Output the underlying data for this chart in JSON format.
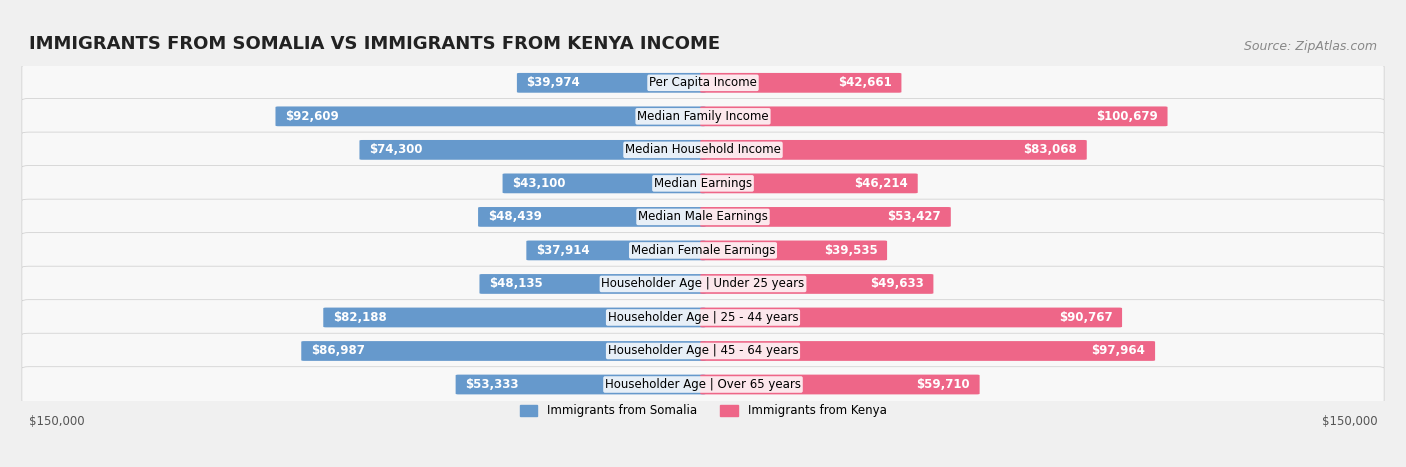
{
  "title": "IMMIGRANTS FROM SOMALIA VS IMMIGRANTS FROM KENYA INCOME",
  "source": "Source: ZipAtlas.com",
  "categories": [
    "Per Capita Income",
    "Median Family Income",
    "Median Household Income",
    "Median Earnings",
    "Median Male Earnings",
    "Median Female Earnings",
    "Householder Age | Under 25 years",
    "Householder Age | 25 - 44 years",
    "Householder Age | 45 - 64 years",
    "Householder Age | Over 65 years"
  ],
  "somalia_values": [
    39974,
    92609,
    74300,
    43100,
    48439,
    37914,
    48135,
    82188,
    86987,
    53333
  ],
  "kenya_values": [
    42661,
    100679,
    83068,
    46214,
    53427,
    39535,
    49633,
    90767,
    97964,
    59710
  ],
  "somalia_labels": [
    "$39,974",
    "$92,609",
    "$74,300",
    "$43,100",
    "$48,439",
    "$37,914",
    "$48,135",
    "$82,188",
    "$86,987",
    "$53,333"
  ],
  "kenya_labels": [
    "$42,661",
    "$100,679",
    "$83,068",
    "$46,214",
    "$53,427",
    "$39,535",
    "$49,633",
    "$90,767",
    "$97,964",
    "$59,710"
  ],
  "somalia_color_light": "#a8c4e0",
  "somalia_color_dark": "#6699cc",
  "kenya_color_light": "#f4a0b8",
  "kenya_color_dark": "#ee6688",
  "max_value": 150000,
  "x_label_left": "$150,000",
  "x_label_right": "$150,000",
  "legend_somalia": "Immigrants from Somalia",
  "legend_kenya": "Immigrants from Kenya",
  "background_color": "#f0f0f0",
  "row_bg_color": "#ffffff",
  "row_alt_bg_color": "#f5f5f5",
  "title_fontsize": 13,
  "source_fontsize": 9,
  "label_fontsize": 8.5,
  "category_fontsize": 8.5
}
